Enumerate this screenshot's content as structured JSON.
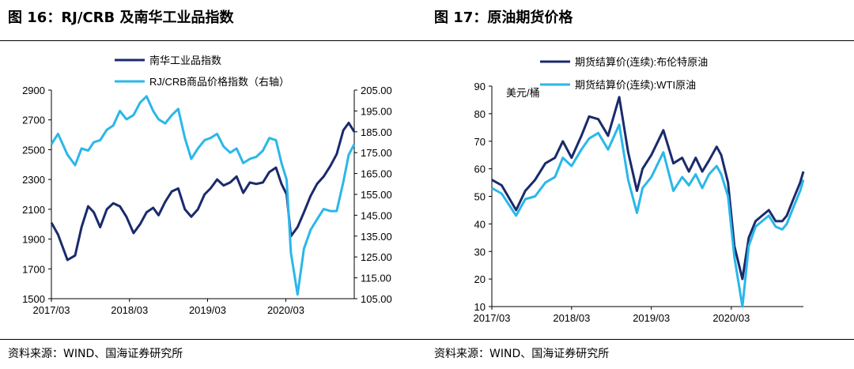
{
  "figure_left": {
    "title": "图 16：RJ/CRB 及南华工业品指数",
    "source": "资料来源：WIND、国海证券研究所"
  },
  "figure_right": {
    "title": "图 17：原油期货价格",
    "source": "资料来源：WIND、国海证券研究所"
  },
  "chart_data": [
    {
      "type": "line",
      "title": "",
      "x_ticks": [
        "2017/03",
        "2018/03",
        "2019/03",
        "2020/03"
      ],
      "x_range": [
        "2017-03-01",
        "2021-01-15"
      ],
      "left_axis": {
        "ticks": [
          1500,
          1700,
          1900,
          2100,
          2300,
          2500,
          2700,
          2900
        ],
        "range": [
          1500,
          2900
        ],
        "tick_labels": [
          "1500",
          "1700",
          "1900",
          "2100",
          "2300",
          "2500",
          "2700",
          "2900"
        ]
      },
      "right_axis": {
        "ticks": [
          105,
          115,
          125,
          135,
          145,
          155,
          165,
          175,
          185,
          195,
          205
        ],
        "range": [
          105,
          205
        ],
        "tick_labels": [
          "105.00",
          "115.00",
          "125.00",
          "135.00",
          "145.00",
          "155.00",
          "165.00",
          "175.00",
          "185.00",
          "195.00",
          "205.00"
        ]
      },
      "legend": {
        "placement": "top"
      },
      "series": [
        {
          "name": "南华工业品指数",
          "axis": "left",
          "color": "#1a2a6c",
          "points": [
            [
              "2017-03-01",
              2010
            ],
            [
              "2017-04-01",
              1930
            ],
            [
              "2017-05-15",
              1760
            ],
            [
              "2017-06-20",
              1790
            ],
            [
              "2017-07-20",
              1980
            ],
            [
              "2017-08-20",
              2120
            ],
            [
              "2017-09-15",
              2080
            ],
            [
              "2017-10-15",
              1980
            ],
            [
              "2017-11-15",
              2100
            ],
            [
              "2017-12-15",
              2140
            ],
            [
              "2018-01-15",
              2120
            ],
            [
              "2018-02-15",
              2050
            ],
            [
              "2018-03-20",
              1940
            ],
            [
              "2018-04-20",
              2000
            ],
            [
              "2018-05-20",
              2080
            ],
            [
              "2018-06-20",
              2110
            ],
            [
              "2018-07-15",
              2060
            ],
            [
              "2018-08-15",
              2150
            ],
            [
              "2018-09-15",
              2220
            ],
            [
              "2018-10-15",
              2240
            ],
            [
              "2018-11-15",
              2100
            ],
            [
              "2018-12-15",
              2050
            ],
            [
              "2019-01-15",
              2100
            ],
            [
              "2019-02-15",
              2200
            ],
            [
              "2019-03-15",
              2240
            ],
            [
              "2019-04-15",
              2300
            ],
            [
              "2019-05-15",
              2260
            ],
            [
              "2019-06-15",
              2280
            ],
            [
              "2019-07-15",
              2320
            ],
            [
              "2019-08-15",
              2210
            ],
            [
              "2019-09-15",
              2280
            ],
            [
              "2019-10-15",
              2270
            ],
            [
              "2019-11-15",
              2280
            ],
            [
              "2019-12-15",
              2350
            ],
            [
              "2020-01-15",
              2380
            ],
            [
              "2020-02-10",
              2270
            ],
            [
              "2020-03-05",
              2200
            ],
            [
              "2020-03-25",
              1920
            ],
            [
              "2020-04-25",
              1980
            ],
            [
              "2020-05-25",
              2080
            ],
            [
              "2020-06-25",
              2190
            ],
            [
              "2020-07-25",
              2270
            ],
            [
              "2020-08-25",
              2320
            ],
            [
              "2020-09-25",
              2390
            ],
            [
              "2020-10-25",
              2470
            ],
            [
              "2020-11-25",
              2630
            ],
            [
              "2020-12-20",
              2680
            ],
            [
              "2021-01-15",
              2620
            ]
          ]
        },
        {
          "name": "RJ/CRB商品价格指数（右轴）",
          "axis": "right",
          "color": "#2ab7ea",
          "points": [
            [
              "2017-03-01",
              179
            ],
            [
              "2017-04-01",
              184
            ],
            [
              "2017-05-15",
              174
            ],
            [
              "2017-06-20",
              169
            ],
            [
              "2017-07-20",
              177
            ],
            [
              "2017-08-20",
              176
            ],
            [
              "2017-09-15",
              180
            ],
            [
              "2017-10-15",
              181
            ],
            [
              "2017-11-15",
              186
            ],
            [
              "2017-12-15",
              188
            ],
            [
              "2018-01-15",
              195
            ],
            [
              "2018-02-15",
              191
            ],
            [
              "2018-03-20",
              193
            ],
            [
              "2018-04-20",
              199
            ],
            [
              "2018-05-20",
              202
            ],
            [
              "2018-06-20",
              195
            ],
            [
              "2018-07-15",
              191
            ],
            [
              "2018-08-15",
              189
            ],
            [
              "2018-09-15",
              193
            ],
            [
              "2018-10-15",
              196
            ],
            [
              "2018-11-15",
              182
            ],
            [
              "2018-12-15",
              172
            ],
            [
              "2019-01-15",
              177
            ],
            [
              "2019-02-15",
              181
            ],
            [
              "2019-03-15",
              182
            ],
            [
              "2019-04-15",
              184
            ],
            [
              "2019-05-15",
              178
            ],
            [
              "2019-06-15",
              175
            ],
            [
              "2019-07-15",
              177
            ],
            [
              "2019-08-15",
              170
            ],
            [
              "2019-09-15",
              172
            ],
            [
              "2019-10-15",
              173
            ],
            [
              "2019-11-15",
              176
            ],
            [
              "2019-12-15",
              182
            ],
            [
              "2020-01-15",
              181
            ],
            [
              "2020-02-10",
              170
            ],
            [
              "2020-03-05",
              162
            ],
            [
              "2020-03-25",
              127
            ],
            [
              "2020-04-25",
              107
            ],
            [
              "2020-05-25",
              129
            ],
            [
              "2020-06-25",
              138
            ],
            [
              "2020-07-25",
              143
            ],
            [
              "2020-08-25",
              148
            ],
            [
              "2020-09-25",
              147
            ],
            [
              "2020-10-25",
              147
            ],
            [
              "2020-11-25",
              161
            ],
            [
              "2020-12-20",
              174
            ],
            [
              "2021-01-15",
              179
            ]
          ]
        }
      ]
    },
    {
      "type": "line",
      "title": "",
      "unit_label": "美元/桶",
      "x_ticks": [
        "2017/03",
        "2018/03",
        "2019/03",
        "2020/03"
      ],
      "x_range": [
        "2017-03-01",
        "2021-01-25"
      ],
      "y_axis": {
        "ticks": [
          10,
          20,
          30,
          40,
          50,
          60,
          70,
          80,
          90
        ],
        "range": [
          10,
          90
        ],
        "tick_labels": [
          "10",
          "20",
          "30",
          "40",
          "50",
          "60",
          "70",
          "80",
          "90"
        ]
      },
      "legend": {
        "placement": "top"
      },
      "series": [
        {
          "name": "期货结算价(连续):布伦特原油",
          "color": "#1a2a6c",
          "points": [
            [
              "2017-03-01",
              56
            ],
            [
              "2017-04-15",
              54
            ],
            [
              "2017-06-20",
              45
            ],
            [
              "2017-08-01",
              52
            ],
            [
              "2017-09-15",
              56
            ],
            [
              "2017-11-01",
              62
            ],
            [
              "2017-12-15",
              64
            ],
            [
              "2018-01-20",
              70
            ],
            [
              "2018-03-01",
              64
            ],
            [
              "2018-04-15",
              72
            ],
            [
              "2018-05-20",
              79
            ],
            [
              "2018-07-01",
              78
            ],
            [
              "2018-08-15",
              72
            ],
            [
              "2018-10-05",
              86
            ],
            [
              "2018-11-15",
              66
            ],
            [
              "2018-12-25",
              52
            ],
            [
              "2019-01-20",
              60
            ],
            [
              "2019-03-01",
              65
            ],
            [
              "2019-04-25",
              74
            ],
            [
              "2019-06-10",
              62
            ],
            [
              "2019-07-20",
              64
            ],
            [
              "2019-08-20",
              59
            ],
            [
              "2019-09-20",
              64
            ],
            [
              "2019-10-20",
              59
            ],
            [
              "2019-11-20",
              63
            ],
            [
              "2019-12-25",
              68
            ],
            [
              "2020-01-15",
              65
            ],
            [
              "2020-02-15",
              55
            ],
            [
              "2020-03-15",
              32
            ],
            [
              "2020-04-21",
              20
            ],
            [
              "2020-05-20",
              35
            ],
            [
              "2020-06-20",
              41
            ],
            [
              "2020-07-20",
              43
            ],
            [
              "2020-08-20",
              45
            ],
            [
              "2020-09-20",
              41
            ],
            [
              "2020-10-20",
              41
            ],
            [
              "2020-11-10",
              43
            ],
            [
              "2020-12-10",
              49
            ],
            [
              "2021-01-10",
              55
            ],
            [
              "2021-01-25",
              59
            ]
          ]
        },
        {
          "name": "期货结算价(连续):WTI原油",
          "color": "#2ab7ea",
          "points": [
            [
              "2017-03-01",
              53
            ],
            [
              "2017-04-15",
              51
            ],
            [
              "2017-06-20",
              43
            ],
            [
              "2017-08-01",
              49
            ],
            [
              "2017-09-15",
              50
            ],
            [
              "2017-11-01",
              55
            ],
            [
              "2017-12-15",
              57
            ],
            [
              "2018-01-20",
              64
            ],
            [
              "2018-03-01",
              61
            ],
            [
              "2018-04-15",
              67
            ],
            [
              "2018-05-20",
              71
            ],
            [
              "2018-07-01",
              73
            ],
            [
              "2018-08-15",
              67
            ],
            [
              "2018-10-05",
              76
            ],
            [
              "2018-11-15",
              56
            ],
            [
              "2018-12-25",
              44
            ],
            [
              "2019-01-20",
              53
            ],
            [
              "2019-03-01",
              57
            ],
            [
              "2019-04-25",
              66
            ],
            [
              "2019-06-10",
              52
            ],
            [
              "2019-07-20",
              57
            ],
            [
              "2019-08-20",
              54
            ],
            [
              "2019-09-20",
              58
            ],
            [
              "2019-10-20",
              53
            ],
            [
              "2019-11-20",
              58
            ],
            [
              "2019-12-25",
              61
            ],
            [
              "2020-01-15",
              58
            ],
            [
              "2020-02-15",
              50
            ],
            [
              "2020-03-15",
              28
            ],
            [
              "2020-04-21",
              10
            ],
            [
              "2020-05-20",
              32
            ],
            [
              "2020-06-20",
              39
            ],
            [
              "2020-07-20",
              41
            ],
            [
              "2020-08-20",
              43
            ],
            [
              "2020-09-20",
              39
            ],
            [
              "2020-10-20",
              38
            ],
            [
              "2020-11-10",
              40
            ],
            [
              "2020-12-10",
              46
            ],
            [
              "2021-01-10",
              52
            ],
            [
              "2021-01-25",
              56
            ]
          ]
        }
      ]
    }
  ]
}
